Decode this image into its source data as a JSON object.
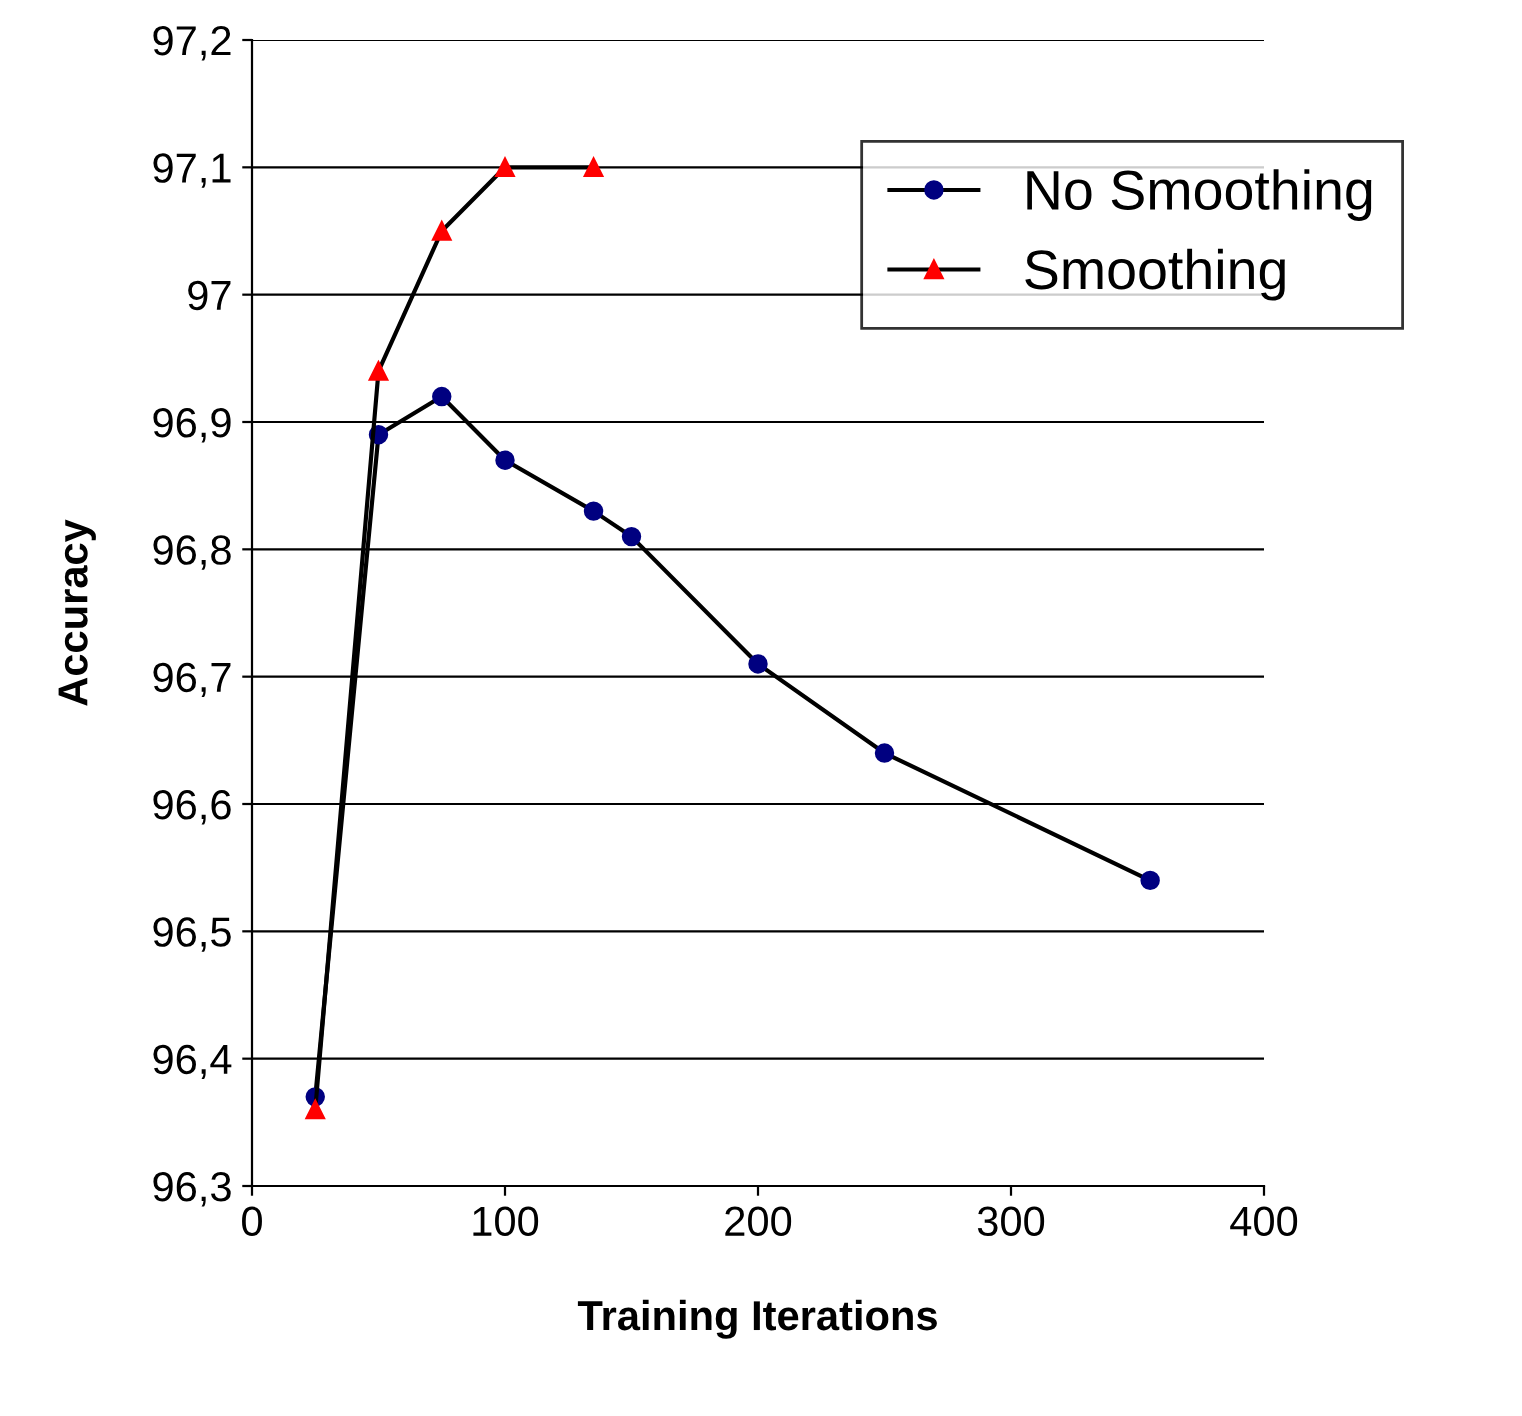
{
  "chart_data": {
    "type": "line",
    "xlabel": "Training Iterations",
    "ylabel": "Accuracy",
    "xlim": [
      0,
      400
    ],
    "xticks": [
      0,
      100,
      200,
      300,
      400
    ],
    "ylim": [
      96.3,
      97.2
    ],
    "yticks": [
      {
        "value": 96.3,
        "label": "96,3"
      },
      {
        "value": 96.4,
        "label": "96,4"
      },
      {
        "value": 96.5,
        "label": "96,5"
      },
      {
        "value": 96.6,
        "label": "96,6"
      },
      {
        "value": 96.7,
        "label": "96,7"
      },
      {
        "value": 96.8,
        "label": "96,8"
      },
      {
        "value": 96.9,
        "label": "96,9"
      },
      {
        "value": 97,
        "label": "97"
      },
      {
        "value": 97.1,
        "label": "97,1"
      },
      {
        "value": 97.2,
        "label": "97,2"
      }
    ],
    "grid": "y",
    "legend": "right",
    "series": [
      {
        "name": "No Smoothing",
        "color": "#000080",
        "marker": "circle",
        "x": [
          25,
          50,
          75,
          100,
          135,
          150,
          200,
          250,
          355
        ],
        "values": [
          96.37,
          96.89,
          96.92,
          96.87,
          96.83,
          96.81,
          96.71,
          96.64,
          96.54
        ]
      },
      {
        "name": "Smoothing",
        "color": "#ff0000",
        "marker": "triangle",
        "x": [
          25,
          50,
          75,
          100,
          135
        ],
        "values": [
          96.36,
          96.94,
          97.05,
          97.1,
          97.1
        ]
      }
    ]
  }
}
